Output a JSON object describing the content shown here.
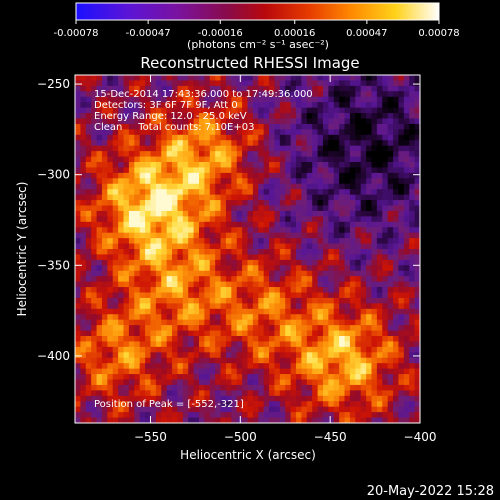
{
  "chart_data": {
    "type": "heatmap",
    "title": "Reconstructed RHESSI Image",
    "colorbar": {
      "min": -0.00078,
      "max": 0.00078,
      "tick_labels": [
        "-0.00078",
        "-0.00047",
        "-0.00016",
        "0.00016",
        "0.00047",
        "0.00078"
      ],
      "tick_values": [
        -0.00078,
        -0.00047,
        -0.00016,
        0.00016,
        0.00047,
        0.00078
      ],
      "unit_label": "(photons cm⁻² s⁻¹ asec⁻²)"
    },
    "xlabel": "Heliocentric X (arcsec)",
    "ylabel": "Heliocentric Y (arcsec)",
    "xlim": [
      -592,
      -400
    ],
    "ylim": [
      -437,
      -245
    ],
    "x_ticks": [
      -550,
      -500,
      -450,
      -400
    ],
    "x_tick_labels": [
      "−550",
      "−500",
      "−450",
      "−400"
    ],
    "y_ticks": [
      -400,
      -350,
      -300,
      -250
    ],
    "y_tick_labels": [
      "−400",
      "−350",
      "−300",
      "−250"
    ],
    "annotations": [
      "15-Dec-2014 17:43:36.000 to 17:49:36.000",
      "Detectors: 3F 6F 7F 9F, Att 0",
      "Energy Range: 12.0 - 25.0 keV",
      "Clean     Total counts: 7.10E+03"
    ],
    "peak_label": "Position of Peak = [-552,-321]",
    "peak_position": [
      -552,
      -321
    ],
    "colormap": "RHESSI color table (black-blue-purple-red-orange-yellow-white)",
    "background": "#000000",
    "foreground": "#ffffff"
  },
  "footer": {
    "date_stamp": "20-May-2022 15:28"
  }
}
